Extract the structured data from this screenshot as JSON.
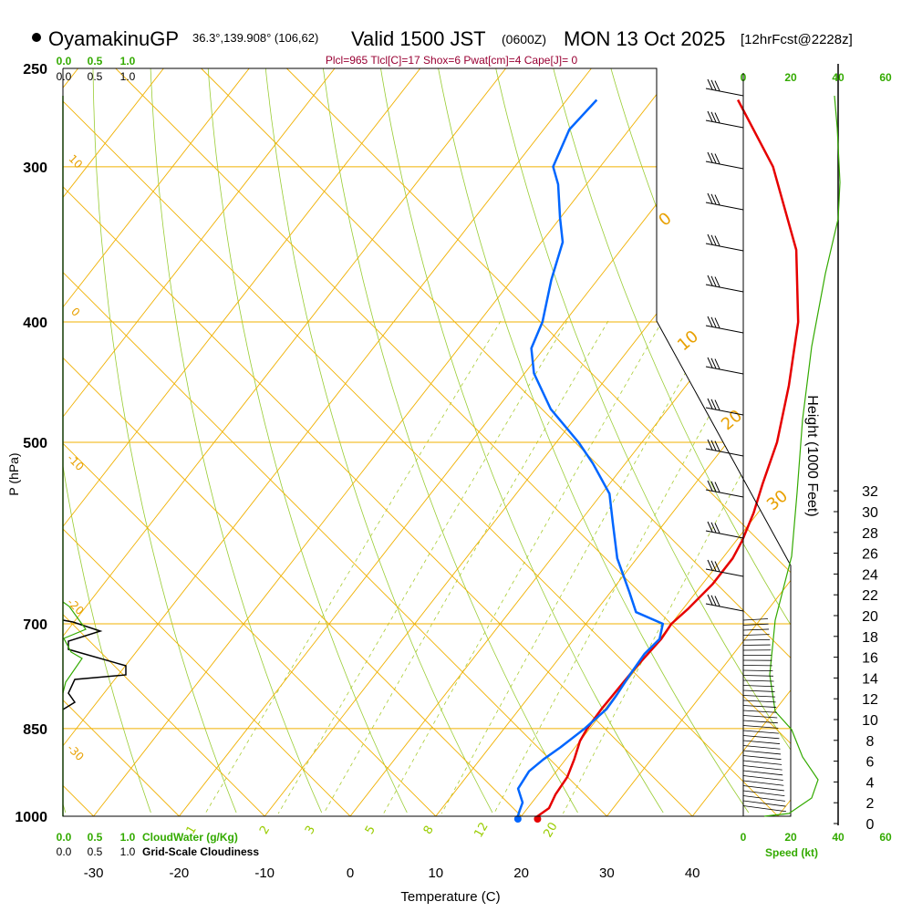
{
  "header": {
    "station": "OyamakinuGP",
    "coords": "36.3°,139.908° (106,62)",
    "valid": "Valid 1500 JST",
    "utc": "(0600Z)",
    "date": "MON 13 Oct 2025",
    "forecast": "[12hrFcst@2228z]",
    "indices": "Plcl=965 Tlcl[C]=17 Shox=6 Pwat[cm]=4 Cape[J]= 0"
  },
  "chart_data": {
    "type": "line",
    "title": "OyamakinuGP 36.3°,139.908° (106,62) Valid 1500 JST (0600Z) MON 13 Oct 2025 [12hrFcst@2228z]",
    "xlabel": "Temperature (C)",
    "ylabel": "P (hPa)",
    "right_label": "Height (1000 Feet)",
    "x_ticks": [
      "-30",
      "-20",
      "-10",
      "0",
      "10",
      "20",
      "30",
      "40"
    ],
    "x_tick_values": [
      -30,
      -20,
      -10,
      0,
      10,
      20,
      30,
      40
    ],
    "xlim": [
      -33,
      49
    ],
    "p_ticks": [
      "250",
      "300",
      "400",
      "500",
      "700",
      "850",
      "1000"
    ],
    "p_tick_values": [
      250,
      300,
      400,
      500,
      700,
      850,
      1000
    ],
    "plim": [
      250,
      1000
    ],
    "height_ticks": [
      "0",
      "2",
      "4",
      "6",
      "8",
      "10",
      "12",
      "14",
      "16",
      "18",
      "20",
      "22",
      "24",
      "26",
      "28",
      "30",
      "32"
    ],
    "height_tick_values": [
      0,
      2,
      4,
      6,
      8,
      10,
      12,
      14,
      16,
      18,
      20,
      22,
      24,
      26,
      28,
      30,
      32
    ],
    "isotherm_labels": [
      "10",
      "0",
      "-10",
      "-20",
      "-30"
    ],
    "dry_adiabat_labels": [
      "0",
      "10",
      "20",
      "30"
    ],
    "mixing_ratio_labels": [
      "1",
      "2",
      "3",
      "5",
      "8",
      "12",
      "20"
    ],
    "cloud_scale_top_1": [
      "0.0",
      "0.5",
      "1.0"
    ],
    "cloud_scale_top_2": [
      "0.0",
      "0.5",
      "1.0"
    ],
    "cloud_scale_bottom_1": [
      "0.0",
      "0.5",
      "1.0"
    ],
    "cloud_scale_bottom_2": [
      "0.0",
      "0.5",
      "1.0"
    ],
    "cloudwater_label": "CloudWater (g/Kg)",
    "cloudiness_label": "Grid-Scale Cloudiness",
    "speed_ticks_top": [
      "0",
      "20",
      "40",
      "60"
    ],
    "speed_ticks_bottom": [
      "0",
      "20",
      "40",
      "60"
    ],
    "speed_label": "Speed (kt)",
    "series": [
      {
        "name": "Temperature",
        "color": "#e60000",
        "points": [
          [
            1000,
            21.9
          ],
          [
            985,
            22.5
          ],
          [
            960,
            22.0
          ],
          [
            930,
            21.8
          ],
          [
            900,
            21.0
          ],
          [
            870,
            20.0
          ],
          [
            850,
            19.7
          ],
          [
            820,
            19.6
          ],
          [
            790,
            19.7
          ],
          [
            760,
            19.8
          ],
          [
            720,
            20.2
          ],
          [
            700,
            20.0
          ],
          [
            680,
            20.6
          ],
          [
            650,
            21.2
          ],
          [
            620,
            21.2
          ],
          [
            600,
            20.7
          ],
          [
            570,
            19.5
          ],
          [
            540,
            17.9
          ],
          [
            500,
            15.8
          ],
          [
            450,
            12.0
          ],
          [
            400,
            7.3
          ],
          [
            350,
            0.5
          ],
          [
            300,
            -9.8
          ],
          [
            265,
            -20.0
          ]
        ]
      },
      {
        "name": "Dewpoint",
        "color": "#0066ff",
        "points": [
          [
            1000,
            19.6
          ],
          [
            990,
            19.3
          ],
          [
            975,
            18.9
          ],
          [
            950,
            17.1
          ],
          [
            920,
            16.8
          ],
          [
            900,
            17.4
          ],
          [
            880,
            18.3
          ],
          [
            850,
            19.4
          ],
          [
            820,
            20.2
          ],
          [
            800,
            20.1
          ],
          [
            770,
            19.8
          ],
          [
            740,
            19.6
          ],
          [
            720,
            20.0
          ],
          [
            700,
            19.0
          ],
          [
            685,
            14.8
          ],
          [
            660,
            12.2
          ],
          [
            620,
            7.7
          ],
          [
            580,
            3.9
          ],
          [
            550,
            0.9
          ],
          [
            520,
            -3.8
          ],
          [
            500,
            -7.4
          ],
          [
            470,
            -13.7
          ],
          [
            440,
            -18.9
          ],
          [
            420,
            -21.5
          ],
          [
            400,
            -22.6
          ],
          [
            370,
            -25.4
          ],
          [
            345,
            -27.5
          ],
          [
            330,
            -30.0
          ],
          [
            310,
            -33.3
          ],
          [
            300,
            -35.5
          ],
          [
            280,
            -37.0
          ],
          [
            265,
            -36.5
          ]
        ]
      }
    ],
    "parcel_marker_T": 21.9,
    "parcel_marker_Td": 19.6
  }
}
